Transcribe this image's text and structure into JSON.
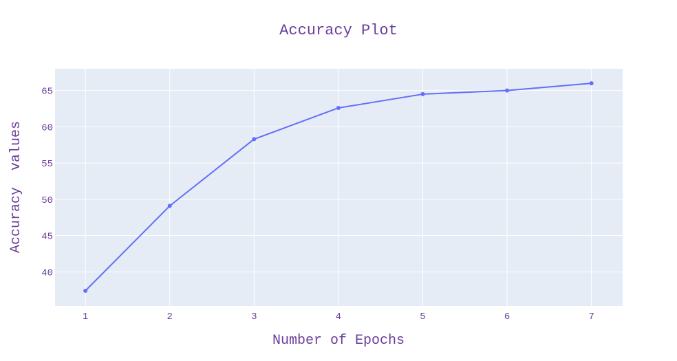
{
  "chart_data": {
    "type": "line",
    "title": "Accuracy Plot",
    "xlabel": "Number of Epochs",
    "ylabel": "Accuracy  values",
    "x": [
      1,
      2,
      3,
      4,
      5,
      6,
      7
    ],
    "series": [
      {
        "values": [
          37.4,
          49.1,
          58.3,
          62.6,
          64.5,
          65.0,
          66.0
        ]
      }
    ],
    "x_ticks": [
      1,
      2,
      3,
      4,
      5,
      6,
      7
    ],
    "y_ticks": [
      40,
      45,
      50,
      55,
      60,
      65
    ],
    "xlim": [
      0.64,
      7.37
    ],
    "ylim": [
      35.3,
      68.0
    ],
    "grid": true,
    "colors": {
      "line": "#636efa",
      "plot_background": "#e5ecf6",
      "grid": "#ffffff",
      "text": "#6a3d9a"
    }
  }
}
